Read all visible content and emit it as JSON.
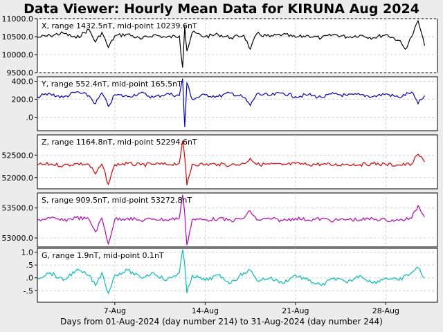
{
  "title": "Data Viewer:  Hourly Mean Data for KIRUNA Aug 2024",
  "xlabel": "Days from 01-Aug-2024 (day number 214) to 31-Aug-2024 (day number 244)",
  "chart_data": {
    "type": "line",
    "x_range": [
      "2024-08-01",
      "2024-08-31"
    ],
    "x_ticks": [
      {
        "date": "2024-08-07",
        "label": "7-Aug"
      },
      {
        "date": "2024-08-14",
        "label": "14-Aug"
      },
      {
        "date": "2024-08-21",
        "label": "21-Aug"
      },
      {
        "date": "2024-08-28",
        "label": "28-Aug"
      }
    ],
    "grid": true,
    "panels": [
      {
        "label": "X, range 1432.5nT, mid-point 10239.6nT",
        "color": "#000000",
        "ylim": [
          9500,
          11000
        ],
        "yticks": [
          {
            "v": 11000,
            "t": "11000.0"
          },
          {
            "v": 10500,
            "t": "10500.0"
          },
          {
            "v": 10000,
            "t": "10000.0"
          },
          {
            "v": 9500,
            "t": "9500.0"
          }
        ],
        "points": [
          [
            "2024-08-01",
            10480
          ],
          [
            "2024-08-02",
            10530
          ],
          [
            "2024-08-03",
            10600
          ],
          [
            "2024-08-04",
            10460
          ],
          [
            "2024-08-05",
            10700
          ],
          [
            "2024-08-05T12",
            10350
          ],
          [
            "2024-08-06",
            10620
          ],
          [
            "2024-08-06T12",
            10200
          ],
          [
            "2024-08-07",
            10520
          ],
          [
            "2024-08-08",
            10570
          ],
          [
            "2024-08-09",
            10430
          ],
          [
            "2024-08-10",
            10550
          ],
          [
            "2024-08-11",
            10480
          ],
          [
            "2024-08-12",
            10520
          ],
          [
            "2024-08-12T06",
            9640
          ],
          [
            "2024-08-12T10",
            10800
          ],
          [
            "2024-08-12T14",
            10100
          ],
          [
            "2024-08-13",
            10620
          ],
          [
            "2024-08-14",
            10500
          ],
          [
            "2024-08-15",
            10560
          ],
          [
            "2024-08-16",
            10470
          ],
          [
            "2024-08-17",
            10540
          ],
          [
            "2024-08-17T12",
            10150
          ],
          [
            "2024-08-18",
            10580
          ],
          [
            "2024-08-19",
            10500
          ],
          [
            "2024-08-20",
            10560
          ],
          [
            "2024-08-21",
            10480
          ],
          [
            "2024-08-22",
            10530
          ],
          [
            "2024-08-23",
            10460
          ],
          [
            "2024-08-24",
            10560
          ],
          [
            "2024-08-25",
            10490
          ],
          [
            "2024-08-26",
            10540
          ],
          [
            "2024-08-27",
            10470
          ],
          [
            "2024-08-28",
            10560
          ],
          [
            "2024-08-29",
            10400
          ],
          [
            "2024-08-29T12",
            10150
          ],
          [
            "2024-08-30",
            10500
          ],
          [
            "2024-08-30T12",
            10940
          ],
          [
            "2024-08-31",
            10250
          ]
        ]
      },
      {
        "label": "Y, range 552.4nT, mid-point 165.5nT",
        "color": "#0000cc",
        "ylim": [
          -150,
          450
        ],
        "yticks": [
          {
            "v": 400,
            "t": "400.0"
          },
          {
            "v": 200,
            "t": "200.0"
          },
          {
            "v": 0,
            "t": ".0"
          }
        ],
        "points": [
          [
            "2024-08-01",
            230
          ],
          [
            "2024-08-02",
            260
          ],
          [
            "2024-08-03",
            220
          ],
          [
            "2024-08-04",
            280
          ],
          [
            "2024-08-05",
            240
          ],
          [
            "2024-08-05T12",
            150
          ],
          [
            "2024-08-06",
            270
          ],
          [
            "2024-08-06T12",
            120
          ],
          [
            "2024-08-07",
            250
          ],
          [
            "2024-08-08",
            230
          ],
          [
            "2024-08-09",
            270
          ],
          [
            "2024-08-10",
            220
          ],
          [
            "2024-08-11",
            260
          ],
          [
            "2024-08-12",
            240
          ],
          [
            "2024-08-12T06",
            430
          ],
          [
            "2024-08-12T10",
            -110
          ],
          [
            "2024-08-12T14",
            380
          ],
          [
            "2024-08-13",
            200
          ],
          [
            "2024-08-14",
            250
          ],
          [
            "2024-08-15",
            230
          ],
          [
            "2024-08-16",
            270
          ],
          [
            "2024-08-17",
            220
          ],
          [
            "2024-08-17T12",
            130
          ],
          [
            "2024-08-18",
            260
          ],
          [
            "2024-08-19",
            240
          ],
          [
            "2024-08-20",
            270
          ],
          [
            "2024-08-21",
            230
          ],
          [
            "2024-08-22",
            250
          ],
          [
            "2024-08-23",
            220
          ],
          [
            "2024-08-24",
            260
          ],
          [
            "2024-08-25",
            240
          ],
          [
            "2024-08-26",
            250
          ],
          [
            "2024-08-27",
            230
          ],
          [
            "2024-08-28",
            260
          ],
          [
            "2024-08-29",
            220
          ],
          [
            "2024-08-30",
            280
          ],
          [
            "2024-08-30T12",
            150
          ],
          [
            "2024-08-31",
            240
          ]
        ]
      },
      {
        "label": "Z, range 1164.8nT, mid-point 52294.6nT",
        "color": "#dd0000",
        "ylim": [
          51750,
          52950
        ],
        "yticks": [
          {
            "v": 52500,
            "t": "52500.0"
          },
          {
            "v": 52000,
            "t": "52000.0"
          }
        ],
        "points": [
          [
            "2024-08-01",
            52280
          ],
          [
            "2024-08-02",
            52300
          ],
          [
            "2024-08-03",
            52270
          ],
          [
            "2024-08-04",
            52310
          ],
          [
            "2024-08-05",
            52290
          ],
          [
            "2024-08-05T12",
            52080
          ],
          [
            "2024-08-06",
            52300
          ],
          [
            "2024-08-06T12",
            51850
          ],
          [
            "2024-08-07",
            52290
          ],
          [
            "2024-08-08",
            52310
          ],
          [
            "2024-08-09",
            52280
          ],
          [
            "2024-08-10",
            52300
          ],
          [
            "2024-08-11",
            52290
          ],
          [
            "2024-08-12",
            52320
          ],
          [
            "2024-08-12T06",
            52820
          ],
          [
            "2024-08-12T10",
            52450
          ],
          [
            "2024-08-12T14",
            51830
          ],
          [
            "2024-08-13",
            52300
          ],
          [
            "2024-08-14",
            52290
          ],
          [
            "2024-08-15",
            52300
          ],
          [
            "2024-08-16",
            52280
          ],
          [
            "2024-08-17",
            52310
          ],
          [
            "2024-08-17T12",
            52430
          ],
          [
            "2024-08-18",
            52290
          ],
          [
            "2024-08-19",
            52300
          ],
          [
            "2024-08-20",
            52280
          ],
          [
            "2024-08-21",
            52310
          ],
          [
            "2024-08-22",
            52290
          ],
          [
            "2024-08-23",
            52300
          ],
          [
            "2024-08-24",
            52280
          ],
          [
            "2024-08-25",
            52300
          ],
          [
            "2024-08-26",
            52290
          ],
          [
            "2024-08-27",
            52310
          ],
          [
            "2024-08-28",
            52290
          ],
          [
            "2024-08-29",
            52280
          ],
          [
            "2024-08-30",
            52300
          ],
          [
            "2024-08-30T12",
            52520
          ],
          [
            "2024-08-31",
            52350
          ]
        ]
      },
      {
        "label": "S, range 909.5nT, mid-point 53272.8nT",
        "color": "#bb00bb",
        "ylim": [
          52850,
          53750
        ],
        "yticks": [
          {
            "v": 53500,
            "t": "53500.0"
          },
          {
            "v": 53000,
            "t": "53000.0"
          }
        ],
        "points": [
          [
            "2024-08-01",
            53300
          ],
          [
            "2024-08-02",
            53330
          ],
          [
            "2024-08-03",
            53290
          ],
          [
            "2024-08-04",
            53340
          ],
          [
            "2024-08-05",
            53310
          ],
          [
            "2024-08-05T12",
            53100
          ],
          [
            "2024-08-06",
            53330
          ],
          [
            "2024-08-06T12",
            52900
          ],
          [
            "2024-08-07",
            53310
          ],
          [
            "2024-08-08",
            53330
          ],
          [
            "2024-08-09",
            53290
          ],
          [
            "2024-08-10",
            53320
          ],
          [
            "2024-08-11",
            53300
          ],
          [
            "2024-08-12",
            53330
          ],
          [
            "2024-08-12T06",
            53720
          ],
          [
            "2024-08-12T10",
            53400
          ],
          [
            "2024-08-12T14",
            52880
          ],
          [
            "2024-08-13",
            53310
          ],
          [
            "2024-08-14",
            53300
          ],
          [
            "2024-08-15",
            53320
          ],
          [
            "2024-08-16",
            53290
          ],
          [
            "2024-08-17",
            53330
          ],
          [
            "2024-08-17T12",
            53450
          ],
          [
            "2024-08-18",
            53300
          ],
          [
            "2024-08-19",
            53320
          ],
          [
            "2024-08-20",
            53290
          ],
          [
            "2024-08-21",
            53330
          ],
          [
            "2024-08-22",
            53300
          ],
          [
            "2024-08-23",
            53320
          ],
          [
            "2024-08-24",
            53290
          ],
          [
            "2024-08-25",
            53310
          ],
          [
            "2024-08-26",
            53300
          ],
          [
            "2024-08-27",
            53320
          ],
          [
            "2024-08-28",
            53300
          ],
          [
            "2024-08-29",
            53290
          ],
          [
            "2024-08-30",
            53330
          ],
          [
            "2024-08-30T12",
            53540
          ],
          [
            "2024-08-31",
            53350
          ]
        ]
      },
      {
        "label": "G, range 1.9nT, mid-point 0.1nT",
        "color": "#00bbbb",
        "ylim": [
          -0.95,
          1.15
        ],
        "yticks": [
          {
            "v": 1.0,
            "t": "1.0"
          },
          {
            "v": 0.5,
            "t": ".5"
          },
          {
            "v": 0.0,
            "t": ".0"
          },
          {
            "v": -0.5,
            "t": "-.5"
          }
        ],
        "points": [
          [
            "2024-08-01",
            0.0
          ],
          [
            "2024-08-02",
            0.2
          ],
          [
            "2024-08-03",
            -0.1
          ],
          [
            "2024-08-04",
            0.3
          ],
          [
            "2024-08-05",
            0.1
          ],
          [
            "2024-08-05T12",
            -0.3
          ],
          [
            "2024-08-06",
            0.2
          ],
          [
            "2024-08-06T12",
            -0.6
          ],
          [
            "2024-08-07",
            0.1
          ],
          [
            "2024-08-08",
            0.3
          ],
          [
            "2024-08-09",
            0.0
          ],
          [
            "2024-08-10",
            0.2
          ],
          [
            "2024-08-11",
            -0.1
          ],
          [
            "2024-08-12",
            0.2
          ],
          [
            "2024-08-12T06",
            1.1
          ],
          [
            "2024-08-12T10",
            0.5
          ],
          [
            "2024-08-12T14",
            -0.6
          ],
          [
            "2024-08-13",
            0.1
          ],
          [
            "2024-08-14",
            -0.1
          ],
          [
            "2024-08-15",
            0.1
          ],
          [
            "2024-08-16",
            -0.2
          ],
          [
            "2024-08-17",
            0.2
          ],
          [
            "2024-08-17T12",
            0.3
          ],
          [
            "2024-08-18",
            -0.1
          ],
          [
            "2024-08-19",
            0.0
          ],
          [
            "2024-08-20",
            -0.2
          ],
          [
            "2024-08-21",
            0.1
          ],
          [
            "2024-08-22",
            -0.1
          ],
          [
            "2024-08-23",
            -0.3
          ],
          [
            "2024-08-24",
            0.0
          ],
          [
            "2024-08-25",
            -0.2
          ],
          [
            "2024-08-26",
            0.1
          ],
          [
            "2024-08-27",
            -0.2
          ],
          [
            "2024-08-28",
            0.0
          ],
          [
            "2024-08-29",
            -0.1
          ],
          [
            "2024-08-30",
            0.2
          ],
          [
            "2024-08-30T12",
            0.4
          ],
          [
            "2024-08-31",
            0.0
          ]
        ]
      }
    ]
  }
}
